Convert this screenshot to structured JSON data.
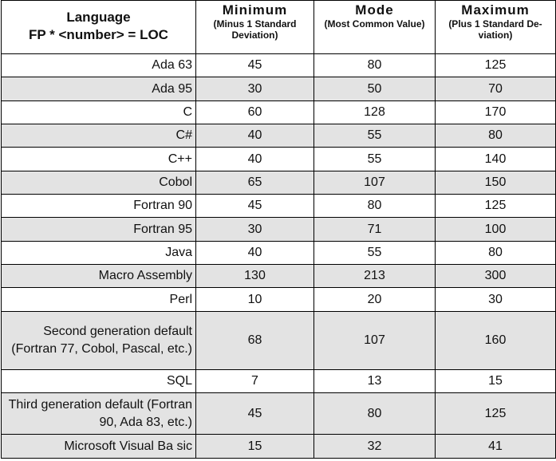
{
  "table": {
    "header": {
      "language": [
        "Language",
        "FP * <number> = LOC"
      ],
      "columns": [
        {
          "title": "Minimum",
          "subtitle": "(Minus 1 Standard Deviation)"
        },
        {
          "title": "Mode",
          "subtitle": "(Most Common Value)"
        },
        {
          "title": "Maximum",
          "subtitle": "(Plus 1 Standard De-viation)"
        }
      ]
    },
    "rows": [
      [
        "Ada 63",
        45,
        80,
        125
      ],
      [
        "Ada 95",
        30,
        50,
        70
      ],
      [
        "C",
        60,
        128,
        170
      ],
      [
        "C#",
        40,
        55,
        80
      ],
      [
        "C++",
        40,
        55,
        140
      ],
      [
        "Cobol",
        65,
        107,
        150
      ],
      [
        "Fortran 90",
        45,
        80,
        125
      ],
      [
        "Fortran 95",
        30,
        71,
        100
      ],
      [
        "Java",
        40,
        55,
        80
      ],
      [
        "Macro Assembly",
        130,
        213,
        300
      ],
      [
        "Perl",
        10,
        20,
        30
      ],
      [
        "Second generation default (Fortran 77, Cobol, Pascal, etc.)",
        68,
        107,
        160
      ],
      [
        "SQL",
        7,
        13,
        15
      ],
      [
        "Third generation default (Fortran 90, Ada 83, etc.)",
        45,
        80,
        125
      ],
      [
        "Microsoft Visual Ba sic",
        15,
        32,
        41
      ]
    ]
  }
}
